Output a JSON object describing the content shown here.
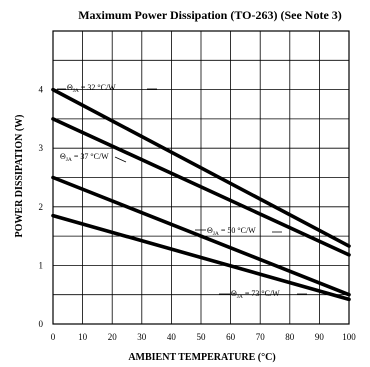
{
  "chart_data": {
    "type": "line",
    "title": "Maximum Power Dissipation (TO-263) (See Note 3)",
    "xlabel": "AMBIENT TEMPERATURE (°C)",
    "ylabel": "POWER DISSIPATION (W)",
    "xlim": [
      0,
      100
    ],
    "ylim": [
      0,
      5
    ],
    "xticks": [
      "0",
      "10",
      "20",
      "30",
      "40",
      "50",
      "60",
      "70",
      "80",
      "90",
      "100"
    ],
    "yticks": [
      "0",
      "1",
      "2",
      "3",
      "4"
    ],
    "grid": true,
    "series": [
      {
        "name": "32 °C/W",
        "x": [
          0,
          100
        ],
        "y": [
          4.0,
          1.33
        ]
      },
      {
        "name": "37 °C/W",
        "x": [
          0,
          100
        ],
        "y": [
          3.5,
          1.18
        ]
      },
      {
        "name": "50 °C/W",
        "x": [
          0,
          100
        ],
        "y": [
          2.5,
          0.5
        ]
      },
      {
        "name": "73 °C/W",
        "x": [
          0,
          100
        ],
        "y": [
          1.85,
          0.42
        ]
      }
    ],
    "annotations": [
      {
        "symbol": "Θ",
        "sub": "JA",
        "text": " = 32 °C/W",
        "series": 0
      },
      {
        "symbol": "Θ",
        "sub": "JA",
        "text": " = 37 °C/W",
        "series": 1
      },
      {
        "symbol": "Θ",
        "sub": "JA",
        "text": " = 50 °C/W",
        "series": 2
      },
      {
        "symbol": "Θ",
        "sub": "JA",
        "text": " = 73 °C/W",
        "series": 3
      }
    ]
  }
}
